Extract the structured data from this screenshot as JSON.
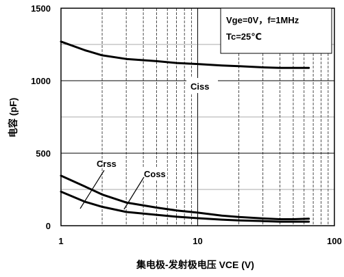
{
  "chart_data": {
    "type": "line",
    "title": "",
    "xlabel": "集电极-发射极电压 VCE (V)",
    "ylabel": "电容 (pF)",
    "x_scale": "log",
    "xlim": [
      1,
      100
    ],
    "ylim": [
      0,
      1500
    ],
    "x_ticks": [
      1,
      10,
      100
    ],
    "x_tick_labels": [
      "1",
      "10",
      "100"
    ],
    "y_ticks": [
      0,
      500,
      1000,
      1500
    ],
    "y_tick_labels": [
      "0",
      "500",
      "1000",
      "1500"
    ],
    "y_minor_gridlines": [
      250,
      750,
      1250
    ],
    "grid": true,
    "legend": "none",
    "conditions": [
      "Vge=0V，f=1MHz",
      "Tc=25℃"
    ],
    "series": [
      {
        "name": "Ciss",
        "x": [
          1,
          1.5,
          2,
          3,
          5,
          7,
          10,
          15,
          20,
          30,
          40,
          50,
          65
        ],
        "y": [
          1270,
          1210,
          1175,
          1150,
          1135,
          1122,
          1115,
          1105,
          1100,
          1092,
          1088,
          1088,
          1088
        ]
      },
      {
        "name": "Coss",
        "x": [
          1,
          1.5,
          2,
          3,
          5,
          7,
          10,
          15,
          20,
          30,
          40,
          50,
          65
        ],
        "y": [
          345,
          270,
          215,
          160,
          125,
          105,
          90,
          70,
          60,
          50,
          45,
          45,
          48
        ]
      },
      {
        "name": "Crss",
        "x": [
          1,
          1.5,
          2,
          3,
          5,
          7,
          10,
          15,
          20,
          30,
          40,
          50,
          65
        ],
        "y": [
          235,
          165,
          130,
          95,
          75,
          62,
          52,
          42,
          37,
          32,
          28,
          28,
          28
        ]
      }
    ]
  }
}
